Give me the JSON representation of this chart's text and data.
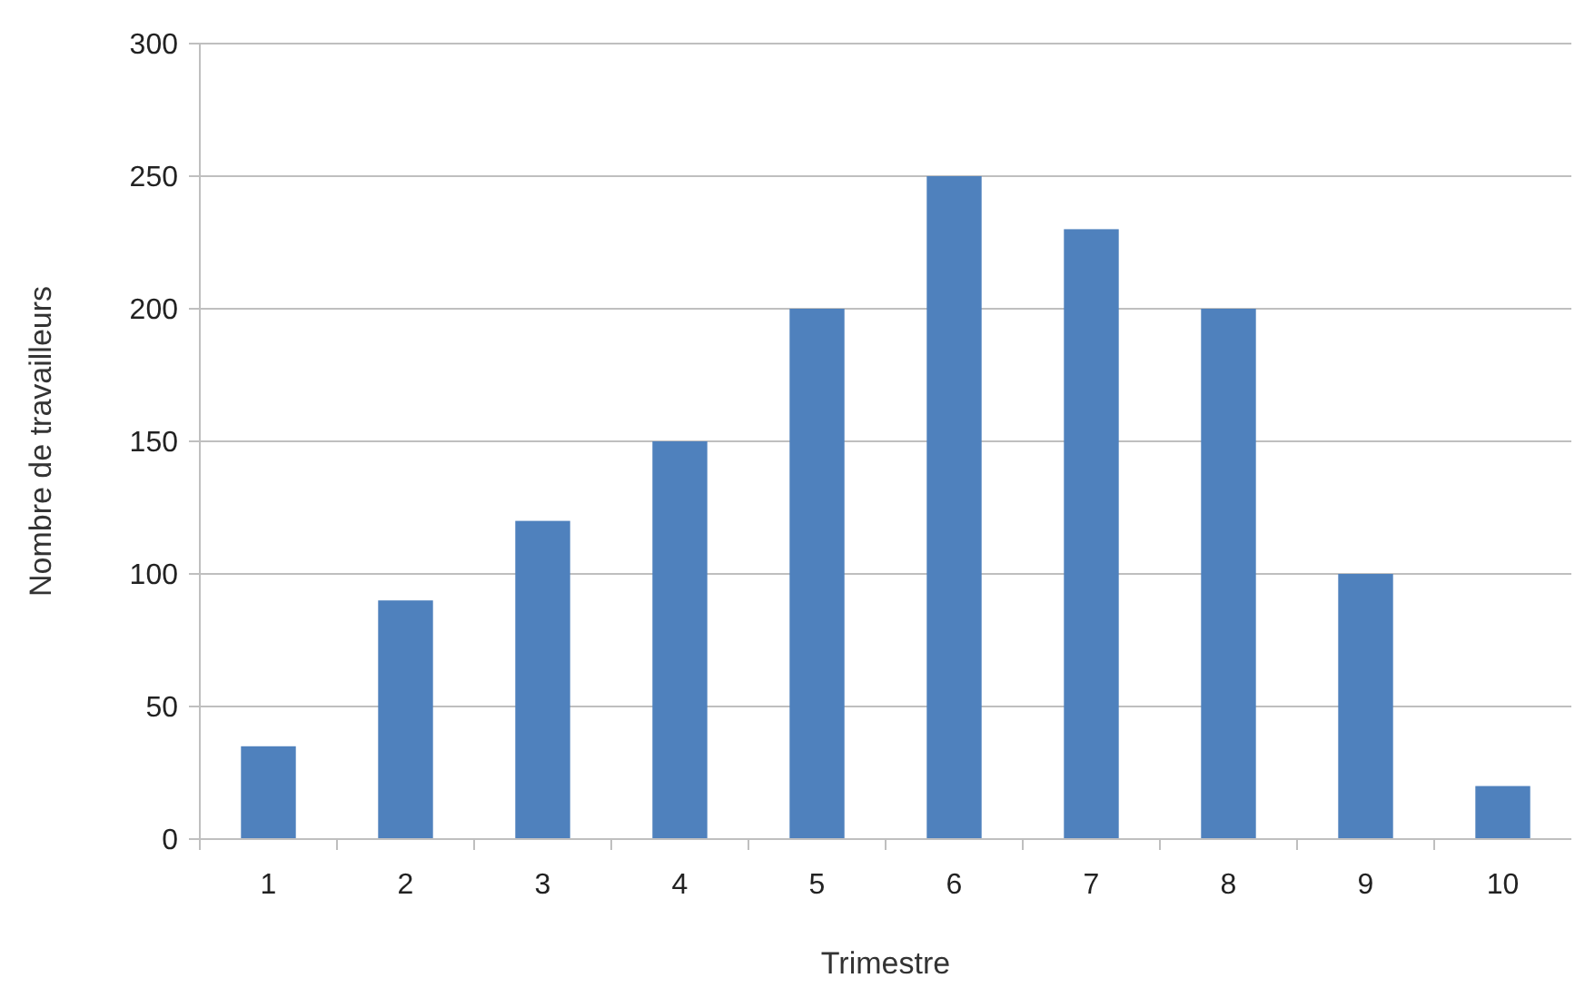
{
  "chart_data": {
    "type": "bar",
    "xlabel": "Trimestre",
    "ylabel": "Nombre de travailleurs",
    "categories": [
      "1",
      "2",
      "3",
      "4",
      "5",
      "6",
      "7",
      "8",
      "9",
      "10"
    ],
    "values": [
      35,
      90,
      120,
      150,
      200,
      250,
      230,
      200,
      100,
      20
    ],
    "color": "#4f81bd",
    "ylim": [
      0,
      300
    ],
    "yticks": [
      0,
      50,
      100,
      150,
      200,
      250,
      300
    ],
    "grid": "y"
  }
}
